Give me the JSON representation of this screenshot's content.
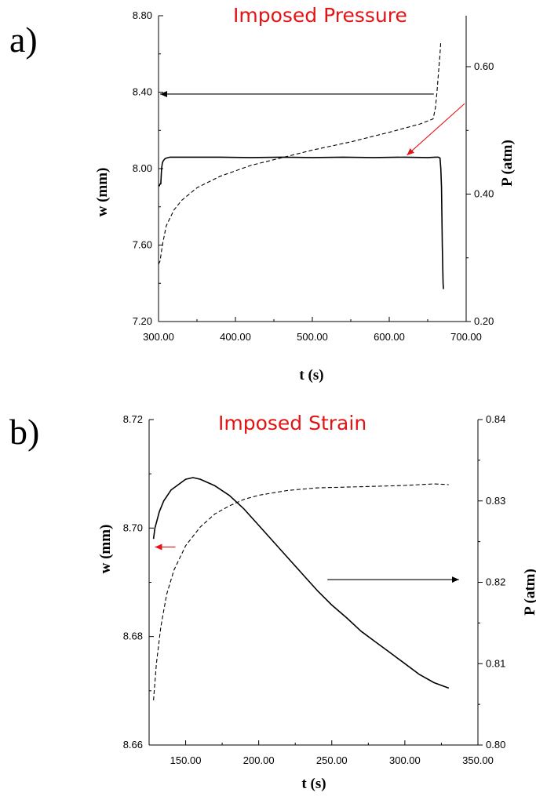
{
  "chart_data": [
    {
      "type": "line",
      "panel_label": "a)",
      "title": "Imposed Pressure",
      "xlabel": "t (s)",
      "ylabel": "w (mm)",
      "y2label": "P (atm)",
      "xlim": [
        300,
        700
      ],
      "ylim": [
        7.2,
        8.8
      ],
      "y2lim": [
        0.2,
        0.68
      ],
      "xticks": [
        "300.00",
        "400.00",
        "500.00",
        "600.00",
        "700.00"
      ],
      "yticks": [
        "7.20",
        "7.60",
        "8.00",
        "8.40",
        "8.80"
      ],
      "y2ticks": [
        "0.20",
        "0.40",
        "0.60"
      ],
      "grid": false,
      "series": [
        {
          "axis": "left",
          "style": "solid",
          "x": [
            300,
            301,
            302,
            303,
            304,
            305,
            306,
            308,
            310,
            315,
            320,
            340,
            380,
            420,
            460,
            500,
            540,
            580,
            620,
            650,
            660,
            664,
            666,
            667,
            668,
            669,
            670,
            670.5
          ],
          "y": [
            7.91,
            7.91,
            7.92,
            7.92,
            8.0,
            8.03,
            8.04,
            8.05,
            8.055,
            8.06,
            8.06,
            8.06,
            8.06,
            8.058,
            8.06,
            8.058,
            8.06,
            8.058,
            8.06,
            8.058,
            8.06,
            8.06,
            8.055,
            8.0,
            7.9,
            7.6,
            7.4,
            7.37
          ]
        },
        {
          "axis": "right",
          "style": "dashed",
          "x": [
            300,
            302,
            305,
            310,
            320,
            330,
            350,
            380,
            420,
            460,
            500,
            550,
            600,
            640,
            657,
            660,
            662,
            664,
            666,
            667
          ],
          "y": [
            0.29,
            0.295,
            0.32,
            0.35,
            0.375,
            0.39,
            0.41,
            0.428,
            0.445,
            0.457,
            0.469,
            0.482,
            0.497,
            0.51,
            0.518,
            0.535,
            0.56,
            0.59,
            0.62,
            0.64
          ]
        }
      ],
      "annotations": [
        {
          "type": "arrow",
          "color": "#000000",
          "from": [
            658,
            8.39
          ],
          "to": [
            302,
            8.39
          ]
        },
        {
          "type": "arrow",
          "color": "#e31414",
          "from": [
            698,
            8.34
          ],
          "to": [
            623,
            8.07
          ]
        }
      ]
    },
    {
      "type": "line",
      "panel_label": "b)",
      "title": "Imposed Strain",
      "xlabel": "t (s)",
      "ylabel": "w (mm)",
      "y2label": "P (atm)",
      "xlim": [
        125,
        350
      ],
      "ylim": [
        8.66,
        8.72
      ],
      "y2lim": [
        0.8,
        0.84
      ],
      "xticks": [
        "150.00",
        "200.00",
        "250.00",
        "300.00",
        "350.00"
      ],
      "yticks": [
        "8.66",
        "8.68",
        "8.70",
        "8.72"
      ],
      "y2ticks": [
        "0.80",
        "0.81",
        "0.82",
        "0.83",
        "0.84"
      ],
      "grid": false,
      "series": [
        {
          "axis": "left",
          "style": "solid",
          "x": [
            128,
            129,
            130,
            132,
            135,
            140,
            145,
            150,
            155,
            160,
            170,
            180,
            190,
            200,
            210,
            220,
            230,
            240,
            250,
            260,
            270,
            280,
            290,
            300,
            310,
            320,
            330
          ],
          "y": [
            8.698,
            8.7,
            8.701,
            8.703,
            8.705,
            8.707,
            8.708,
            8.709,
            8.7093,
            8.709,
            8.7078,
            8.706,
            8.7035,
            8.7005,
            8.6975,
            8.6945,
            8.6915,
            8.6885,
            8.6858,
            8.6835,
            8.681,
            8.679,
            8.677,
            8.675,
            8.673,
            8.6715,
            8.6705
          ]
        },
        {
          "axis": "right",
          "style": "dashed",
          "x": [
            128,
            130,
            133,
            137,
            142,
            150,
            160,
            170,
            180,
            190,
            200,
            220,
            240,
            260,
            280,
            300,
            320,
            330
          ],
          "y": [
            0.8055,
            0.81,
            0.8145,
            0.8185,
            0.8215,
            0.8245,
            0.8268,
            0.8284,
            0.8294,
            0.8302,
            0.8307,
            0.8313,
            0.8316,
            0.8317,
            0.8318,
            0.8319,
            0.8321,
            0.832
          ]
        }
      ],
      "annotations": [
        {
          "type": "arrow",
          "color": "#e31414",
          "from": [
            143,
            8.6965
          ],
          "to": [
            129,
            8.6965
          ]
        },
        {
          "type": "arrow",
          "color": "#000000",
          "from": [
            247,
            8.6905
          ],
          "to": [
            337,
            8.6905
          ]
        }
      ]
    }
  ]
}
